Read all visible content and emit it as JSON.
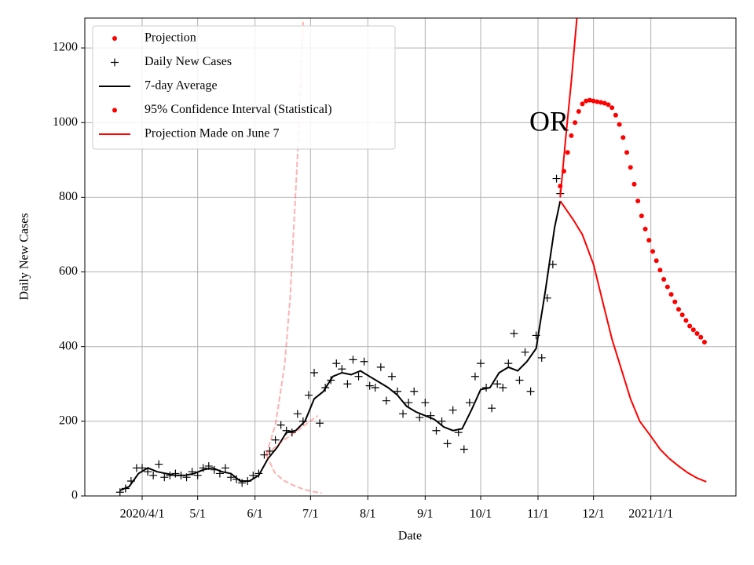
{
  "chart_data": {
    "type": "line",
    "x_label": "Date",
    "y_label": "Daily New Cases",
    "annotation": "OR",
    "grid": true,
    "legend": "upper left",
    "xlim": [
      "2020-03-01",
      "2021-02-16"
    ],
    "xticks": [
      {
        "value": "2020-04-01",
        "label": "2020/4/1"
      },
      {
        "value": "2020-05-01",
        "label": "5/1"
      },
      {
        "value": "2020-06-01",
        "label": "6/1"
      },
      {
        "value": "2020-07-01",
        "label": "7/1"
      },
      {
        "value": "2020-08-01",
        "label": "8/1"
      },
      {
        "value": "2020-09-01",
        "label": "9/1"
      },
      {
        "value": "2020-10-01",
        "label": "10/1"
      },
      {
        "value": "2020-11-01",
        "label": "11/1"
      },
      {
        "value": "2020-12-01",
        "label": "12/1"
      },
      {
        "value": "2021-01-01",
        "label": "2021/1/1"
      }
    ],
    "ylim": [
      0,
      1280
    ],
    "yticks": [
      0,
      200,
      400,
      600,
      800,
      1000,
      1200
    ],
    "series": [
      {
        "name": "Projection",
        "color": "#ff0000",
        "marker": "dot",
        "x": [
          "2020-11-13",
          "2020-11-15",
          "2020-11-17",
          "2020-11-19",
          "2020-11-21",
          "2020-11-23",
          "2020-11-25",
          "2020-11-27",
          "2020-11-29",
          "2020-12-01",
          "2020-12-03",
          "2020-12-05",
          "2020-12-07",
          "2020-12-09",
          "2020-12-11",
          "2020-12-13",
          "2020-12-15",
          "2020-12-17",
          "2020-12-19",
          "2020-12-21",
          "2020-12-23",
          "2020-12-25",
          "2020-12-27",
          "2020-12-29",
          "2020-12-31",
          "2021-01-02",
          "2021-01-04",
          "2021-01-06",
          "2021-01-08",
          "2021-01-10",
          "2021-01-12",
          "2021-01-14",
          "2021-01-16",
          "2021-01-18",
          "2021-01-20",
          "2021-01-22",
          "2021-01-24",
          "2021-01-26",
          "2021-01-28",
          "2021-01-30"
        ],
        "values": [
          830,
          870,
          920,
          965,
          1000,
          1030,
          1050,
          1058,
          1060,
          1058,
          1056,
          1054,
          1052,
          1048,
          1040,
          1020,
          995,
          960,
          920,
          880,
          835,
          790,
          750,
          715,
          685,
          655,
          630,
          605,
          580,
          560,
          540,
          520,
          500,
          485,
          470,
          455,
          445,
          435,
          425,
          412
        ]
      },
      {
        "name": "Daily New Cases",
        "color": "#000000",
        "marker": "plus",
        "x": [
          "2020-03-20",
          "2020-03-23",
          "2020-03-26",
          "2020-03-29",
          "2020-04-01",
          "2020-04-04",
          "2020-04-07",
          "2020-04-10",
          "2020-04-13",
          "2020-04-16",
          "2020-04-19",
          "2020-04-22",
          "2020-04-25",
          "2020-04-28",
          "2020-05-01",
          "2020-05-04",
          "2020-05-07",
          "2020-05-10",
          "2020-05-13",
          "2020-05-16",
          "2020-05-19",
          "2020-05-22",
          "2020-05-25",
          "2020-05-28",
          "2020-05-31",
          "2020-06-03",
          "2020-06-06",
          "2020-06-09",
          "2020-06-12",
          "2020-06-15",
          "2020-06-18",
          "2020-06-21",
          "2020-06-24",
          "2020-06-27",
          "2020-06-30",
          "2020-07-03",
          "2020-07-06",
          "2020-07-09",
          "2020-07-12",
          "2020-07-15",
          "2020-07-18",
          "2020-07-21",
          "2020-07-24",
          "2020-07-27",
          "2020-07-30",
          "2020-08-02",
          "2020-08-05",
          "2020-08-08",
          "2020-08-11",
          "2020-08-14",
          "2020-08-17",
          "2020-08-20",
          "2020-08-23",
          "2020-08-26",
          "2020-08-29",
          "2020-09-01",
          "2020-09-04",
          "2020-09-07",
          "2020-09-10",
          "2020-09-13",
          "2020-09-16",
          "2020-09-19",
          "2020-09-22",
          "2020-09-25",
          "2020-09-28",
          "2020-10-01",
          "2020-10-04",
          "2020-10-07",
          "2020-10-10",
          "2020-10-13",
          "2020-10-16",
          "2020-10-19",
          "2020-10-22",
          "2020-10-25",
          "2020-10-28",
          "2020-10-31",
          "2020-11-03",
          "2020-11-06",
          "2020-11-09",
          "2020-11-11",
          "2020-11-13"
        ],
        "values": [
          10,
          20,
          40,
          75,
          75,
          65,
          55,
          85,
          50,
          55,
          60,
          55,
          50,
          65,
          55,
          75,
          80,
          70,
          60,
          75,
          50,
          45,
          35,
          40,
          55,
          60,
          110,
          120,
          150,
          190,
          175,
          170,
          220,
          200,
          270,
          330,
          195,
          290,
          310,
          355,
          340,
          300,
          365,
          320,
          360,
          295,
          290,
          345,
          255,
          320,
          280,
          220,
          250,
          280,
          210,
          250,
          215,
          175,
          200,
          140,
          230,
          170,
          125,
          250,
          320,
          355,
          290,
          235,
          300,
          290,
          355,
          435,
          310,
          385,
          280,
          430,
          370,
          530,
          620,
          850,
          810
        ]
      },
      {
        "name": "7-day Average",
        "color": "#000000",
        "marker": "line",
        "x": [
          "2020-03-20",
          "2020-03-25",
          "2020-03-30",
          "2020-04-04",
          "2020-04-09",
          "2020-04-14",
          "2020-04-19",
          "2020-04-24",
          "2020-04-29",
          "2020-05-04",
          "2020-05-09",
          "2020-05-14",
          "2020-05-19",
          "2020-05-24",
          "2020-05-29",
          "2020-06-03",
          "2020-06-08",
          "2020-06-13",
          "2020-06-18",
          "2020-06-23",
          "2020-06-28",
          "2020-07-03",
          "2020-07-08",
          "2020-07-13",
          "2020-07-18",
          "2020-07-23",
          "2020-07-28",
          "2020-08-02",
          "2020-08-07",
          "2020-08-12",
          "2020-08-17",
          "2020-08-22",
          "2020-08-27",
          "2020-09-01",
          "2020-09-06",
          "2020-09-11",
          "2020-09-16",
          "2020-09-21",
          "2020-09-26",
          "2020-10-01",
          "2020-10-06",
          "2020-10-11",
          "2020-10-16",
          "2020-10-21",
          "2020-10-26",
          "2020-10-31",
          "2020-11-05",
          "2020-11-10",
          "2020-11-13"
        ],
        "values": [
          15,
          25,
          60,
          75,
          65,
          60,
          55,
          55,
          60,
          70,
          75,
          65,
          60,
          40,
          40,
          55,
          100,
          130,
          170,
          175,
          200,
          260,
          280,
          320,
          330,
          325,
          335,
          320,
          305,
          290,
          270,
          240,
          225,
          215,
          205,
          185,
          175,
          180,
          230,
          285,
          290,
          330,
          345,
          335,
          360,
          395,
          550,
          720,
          790
        ]
      },
      {
        "name": "95% Confidence Interval (Statistical)",
        "color": "#ff0000",
        "marker": "dot",
        "lines": [
          {
            "x": [
              "2020-11-13",
              "2020-11-16",
              "2020-11-19",
              "2020-11-22"
            ],
            "values": [
              800,
              960,
              1110,
              1280
            ]
          },
          {
            "x": [
              "2020-11-13",
              "2020-11-20",
              "2020-11-25",
              "2020-12-01",
              "2020-12-06",
              "2020-12-11",
              "2020-12-16",
              "2020-12-21",
              "2020-12-26",
              "2021-01-01",
              "2021-01-06",
              "2021-01-11",
              "2021-01-16",
              "2021-01-21",
              "2021-01-26",
              "2021-01-31"
            ],
            "values": [
              790,
              740,
              700,
              620,
              520,
              420,
              340,
              260,
              200,
              160,
              125,
              100,
              80,
              62,
              48,
              38
            ]
          }
        ]
      },
      {
        "name": "Projection Made on June 7",
        "color": "#ff0000",
        "marker": "line",
        "alpha": 0.3,
        "dashed": true,
        "lines": [
          {
            "x": [
              "2020-06-07",
              "2020-06-12",
              "2020-06-17",
              "2020-06-20",
              "2020-06-24",
              "2020-06-27"
            ],
            "values": [
              110,
              190,
              350,
              530,
              910,
              1270
            ]
          },
          {
            "x": [
              "2020-06-07",
              "2020-06-14",
              "2020-06-21",
              "2020-06-28",
              "2020-07-05"
            ],
            "values": [
              110,
              140,
              165,
              190,
              215
            ]
          },
          {
            "x": [
              "2020-06-07",
              "2020-06-12",
              "2020-06-17",
              "2020-06-22",
              "2020-06-27",
              "2020-07-02",
              "2020-07-07"
            ],
            "values": [
              110,
              60,
              40,
              28,
              18,
              12,
              8
            ]
          }
        ]
      }
    ]
  }
}
